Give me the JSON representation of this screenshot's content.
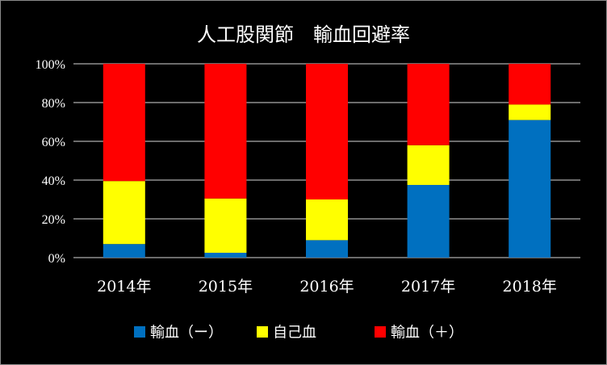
{
  "chart_data": {
    "type": "bar",
    "stacked": true,
    "percent": true,
    "title": "人工股関節　輸血回避率",
    "categories": [
      "2014年",
      "2015年",
      "2016年",
      "2017年",
      "2018年"
    ],
    "series": [
      {
        "name": "輸血（ー）",
        "color": "#0070C0",
        "values": [
          7,
          2.5,
          9,
          37.5,
          71
        ]
      },
      {
        "name": "自己血",
        "color": "#FFFF00",
        "values": [
          32.5,
          28,
          21,
          20.5,
          8
        ]
      },
      {
        "name": "輸血（＋）",
        "color": "#FF0000",
        "values": [
          60.5,
          69.5,
          70,
          42,
          21
        ]
      }
    ],
    "yticks": [
      "0%",
      "20%",
      "40%",
      "60%",
      "80%",
      "100%"
    ],
    "ylim": [
      0,
      100
    ],
    "grid": true,
    "legend": "bottom",
    "background": "#000000",
    "gridcolor": "#d9d9d9"
  }
}
